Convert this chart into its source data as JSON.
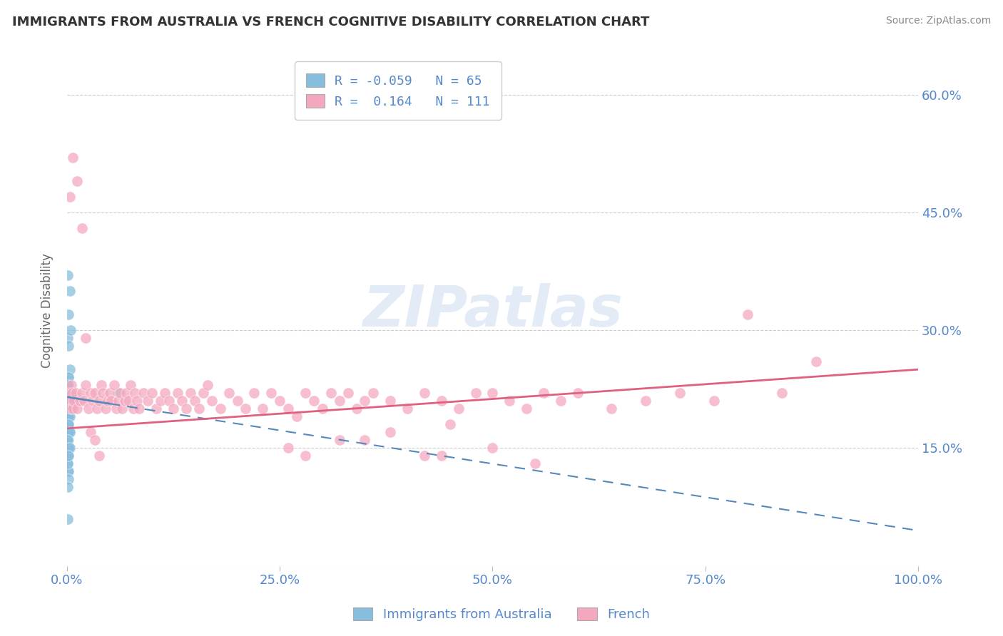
{
  "title": "IMMIGRANTS FROM AUSTRALIA VS FRENCH COGNITIVE DISABILITY CORRELATION CHART",
  "source": "Source: ZipAtlas.com",
  "ylabel": "Cognitive Disability",
  "legend_label1": "Immigrants from Australia",
  "legend_label2": "French",
  "r1": -0.059,
  "n1": 65,
  "r2": 0.164,
  "n2": 111,
  "xlim": [
    0.0,
    1.0
  ],
  "ylim": [
    0.0,
    0.65
  ],
  "yticks": [
    0.15,
    0.3,
    0.45,
    0.6
  ],
  "xticks": [
    0.0,
    0.25,
    0.5,
    0.75,
    1.0
  ],
  "color_blue": "#88bedd",
  "color_pink": "#f4a8be",
  "color_blue_line": "#5588bb",
  "color_pink_line": "#e06080",
  "color_axis_labels": "#5588cc",
  "background": "#ffffff",
  "watermark": "ZIPatlas",
  "blue_scatter_x": [
    0.001,
    0.002,
    0.001,
    0.003,
    0.001,
    0.002,
    0.001,
    0.003,
    0.002,
    0.001,
    0.002,
    0.001,
    0.003,
    0.002,
    0.001,
    0.002,
    0.003,
    0.001,
    0.002,
    0.001,
    0.002,
    0.001,
    0.003,
    0.002,
    0.001,
    0.002,
    0.001,
    0.002,
    0.003,
    0.001,
    0.002,
    0.001,
    0.002,
    0.001,
    0.003,
    0.002,
    0.001,
    0.002,
    0.003,
    0.001,
    0.002,
    0.001,
    0.002,
    0.001,
    0.003,
    0.002,
    0.003,
    0.001,
    0.002,
    0.001,
    0.003,
    0.001,
    0.002,
    0.001,
    0.002,
    0.001,
    0.002,
    0.001,
    0.003,
    0.002,
    0.004,
    0.001,
    0.002,
    0.001,
    0.06
  ],
  "blue_scatter_y": [
    0.22,
    0.24,
    0.21,
    0.2,
    0.22,
    0.23,
    0.19,
    0.25,
    0.2,
    0.22,
    0.21,
    0.2,
    0.17,
    0.22,
    0.2,
    0.19,
    0.21,
    0.22,
    0.18,
    0.23,
    0.22,
    0.21,
    0.2,
    0.19,
    0.22,
    0.16,
    0.21,
    0.17,
    0.22,
    0.2,
    0.24,
    0.19,
    0.21,
    0.23,
    0.2,
    0.22,
    0.18,
    0.17,
    0.21,
    0.16,
    0.15,
    0.2,
    0.14,
    0.13,
    0.19,
    0.18,
    0.17,
    0.37,
    0.15,
    0.16,
    0.35,
    0.29,
    0.28,
    0.12,
    0.12,
    0.14,
    0.11,
    0.1,
    0.15,
    0.32,
    0.3,
    0.13,
    0.14,
    0.06,
    0.22
  ],
  "pink_scatter_x": [
    0.002,
    0.003,
    0.004,
    0.005,
    0.006,
    0.007,
    0.008,
    0.01,
    0.012,
    0.015,
    0.018,
    0.02,
    0.022,
    0.025,
    0.028,
    0.03,
    0.033,
    0.035,
    0.038,
    0.04,
    0.042,
    0.045,
    0.048,
    0.05,
    0.052,
    0.055,
    0.058,
    0.06,
    0.062,
    0.065,
    0.068,
    0.07,
    0.072,
    0.075,
    0.078,
    0.08,
    0.082,
    0.085,
    0.09,
    0.095,
    0.1,
    0.105,
    0.11,
    0.115,
    0.12,
    0.125,
    0.13,
    0.135,
    0.14,
    0.145,
    0.15,
    0.155,
    0.16,
    0.165,
    0.17,
    0.18,
    0.19,
    0.2,
    0.21,
    0.22,
    0.23,
    0.24,
    0.25,
    0.26,
    0.27,
    0.28,
    0.29,
    0.3,
    0.31,
    0.32,
    0.33,
    0.34,
    0.35,
    0.36,
    0.38,
    0.4,
    0.42,
    0.44,
    0.46,
    0.48,
    0.5,
    0.52,
    0.54,
    0.56,
    0.58,
    0.6,
    0.64,
    0.68,
    0.72,
    0.76,
    0.8,
    0.84,
    0.88,
    0.003,
    0.007,
    0.012,
    0.018,
    0.022,
    0.028,
    0.033,
    0.038,
    0.35,
    0.42,
    0.5,
    0.38,
    0.45,
    0.28,
    0.32,
    0.26,
    0.44,
    0.55
  ],
  "pink_scatter_y": [
    0.22,
    0.21,
    0.2,
    0.23,
    0.22,
    0.2,
    0.21,
    0.22,
    0.2,
    0.21,
    0.22,
    0.21,
    0.23,
    0.2,
    0.22,
    0.21,
    0.22,
    0.2,
    0.21,
    0.23,
    0.22,
    0.2,
    0.21,
    0.22,
    0.21,
    0.23,
    0.2,
    0.21,
    0.22,
    0.2,
    0.21,
    0.22,
    0.21,
    0.23,
    0.2,
    0.22,
    0.21,
    0.2,
    0.22,
    0.21,
    0.22,
    0.2,
    0.21,
    0.22,
    0.21,
    0.2,
    0.22,
    0.21,
    0.2,
    0.22,
    0.21,
    0.2,
    0.22,
    0.23,
    0.21,
    0.2,
    0.22,
    0.21,
    0.2,
    0.22,
    0.2,
    0.22,
    0.21,
    0.2,
    0.19,
    0.22,
    0.21,
    0.2,
    0.22,
    0.21,
    0.22,
    0.2,
    0.21,
    0.22,
    0.21,
    0.2,
    0.22,
    0.21,
    0.2,
    0.22,
    0.22,
    0.21,
    0.2,
    0.22,
    0.21,
    0.22,
    0.2,
    0.21,
    0.22,
    0.21,
    0.32,
    0.22,
    0.26,
    0.47,
    0.52,
    0.49,
    0.43,
    0.29,
    0.17,
    0.16,
    0.14,
    0.16,
    0.14,
    0.15,
    0.17,
    0.18,
    0.14,
    0.16,
    0.15,
    0.14,
    0.13
  ],
  "blue_line_x0": 0.0,
  "blue_line_x_break": 0.05,
  "blue_line_x1": 1.0,
  "blue_line_y0": 0.215,
  "blue_line_slope": -0.17,
  "pink_line_x0": 0.0,
  "pink_line_x1": 1.0,
  "pink_line_y0": 0.175,
  "pink_line_slope": 0.075
}
